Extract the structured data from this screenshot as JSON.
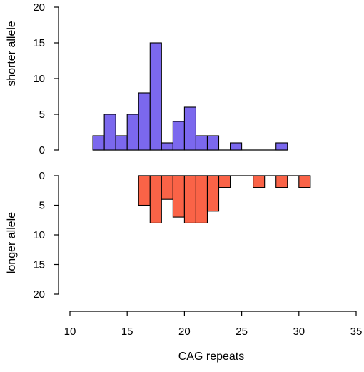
{
  "chart_data": [
    {
      "type": "bar",
      "panel": "top",
      "ylabel": "shorter allele",
      "ylim": [
        0,
        20
      ],
      "yticks": [
        0,
        5,
        10,
        15,
        20
      ],
      "bin_width": 1,
      "color": "#7b68ee",
      "bins": [
        {
          "x": 12,
          "value": 2
        },
        {
          "x": 13,
          "value": 5
        },
        {
          "x": 14,
          "value": 2
        },
        {
          "x": 15,
          "value": 5
        },
        {
          "x": 16,
          "value": 8
        },
        {
          "x": 17,
          "value": 15
        },
        {
          "x": 18,
          "value": 1
        },
        {
          "x": 19,
          "value": 4
        },
        {
          "x": 20,
          "value": 6
        },
        {
          "x": 21,
          "value": 2
        },
        {
          "x": 22,
          "value": 2
        },
        {
          "x": 24,
          "value": 1
        },
        {
          "x": 28,
          "value": 1
        }
      ],
      "baseline": [
        12,
        29
      ]
    },
    {
      "type": "bar",
      "panel": "bottom",
      "ylabel": "longer allele",
      "ylim": [
        0,
        20
      ],
      "yticks": [
        0,
        5,
        10,
        15,
        20
      ],
      "inverted": true,
      "bin_width": 1,
      "color": "#fa6347",
      "bins": [
        {
          "x": 16,
          "value": 5
        },
        {
          "x": 17,
          "value": 8
        },
        {
          "x": 18,
          "value": 4
        },
        {
          "x": 19,
          "value": 7
        },
        {
          "x": 20,
          "value": 8
        },
        {
          "x": 21,
          "value": 8
        },
        {
          "x": 22,
          "value": 6
        },
        {
          "x": 23,
          "value": 2
        },
        {
          "x": 26,
          "value": 2
        },
        {
          "x": 28,
          "value": 2
        },
        {
          "x": 30,
          "value": 2
        }
      ],
      "baseline": [
        16,
        31
      ]
    }
  ],
  "xaxis": {
    "label": "CAG repeats",
    "xlim": [
      10,
      35
    ],
    "ticks": [
      10,
      15,
      20,
      25,
      30,
      35
    ]
  }
}
